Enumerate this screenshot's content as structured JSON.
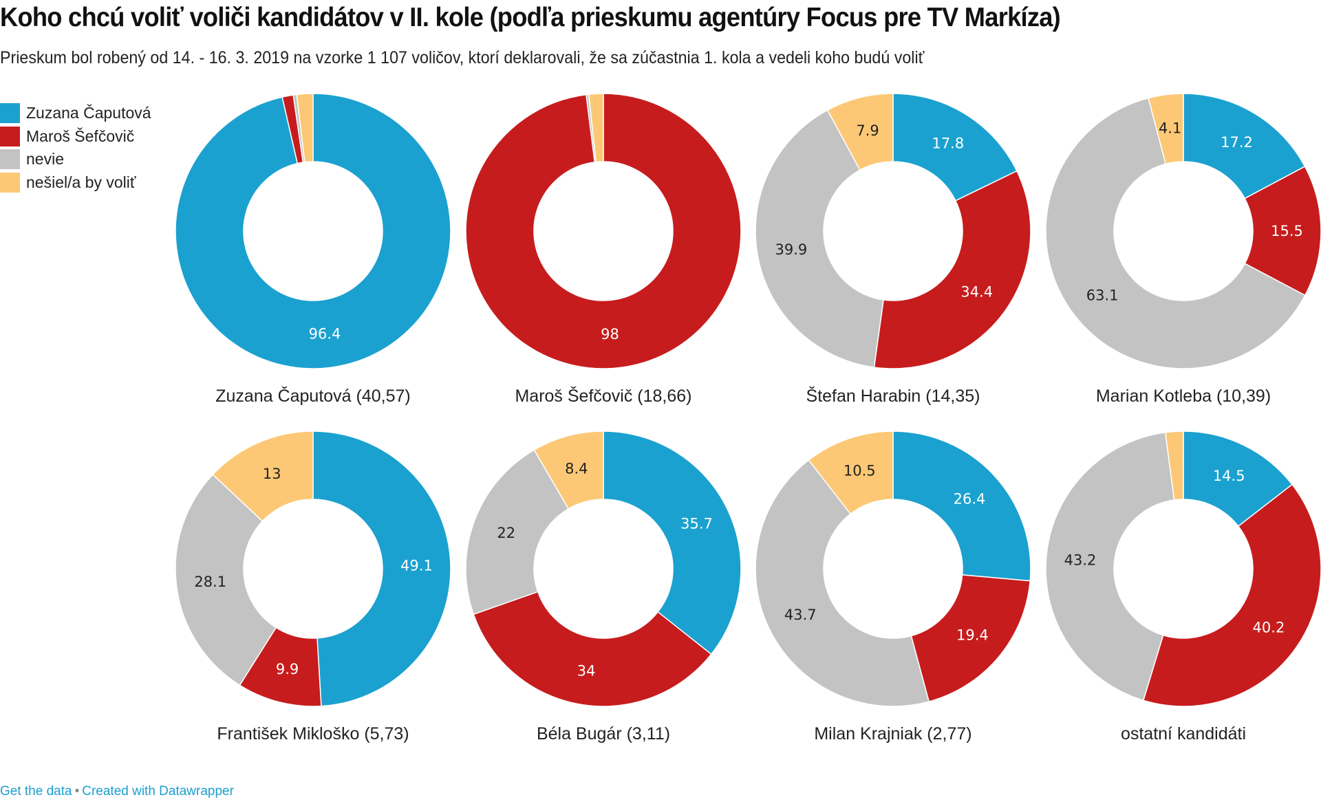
{
  "header": {
    "title": "Koho chcú voliť voliči kandidátov v II. kole (podľa prieskumu agentúry Focus pre TV Markíza)",
    "subtitle": "Prieskum bol robený od 14. - 16. 3. 2019 na vzorke 1 107 voličov, ktorí deklarovali, že sa zúčastnia 1. kola a vedeli koho budú voliť"
  },
  "legend": {
    "items": [
      {
        "label": "Zuzana Čaputová",
        "color": "#1ba1cf"
      },
      {
        "label": "Maroš Šefčovič",
        "color": "#c71c1d"
      },
      {
        "label": "nevie",
        "color": "#c3c3c3"
      },
      {
        "label": "nešiel/a by voliť",
        "color": "#fdc875"
      }
    ]
  },
  "chart_data": {
    "type": "pie",
    "variant": "donut-grid",
    "title": "Koho chcú voliť voliči kandidátov v II. kole (podľa prieskumu agentúry Focus pre TV Markíza)",
    "legend_position": "top-left",
    "series_names": [
      "Zuzana Čaputová",
      "Maroš Šefčovič",
      "nevie",
      "nešiel/a by voliť"
    ],
    "colors": [
      "#1ba1cf",
      "#c71c1d",
      "#c3c3c3",
      "#fdc875"
    ],
    "label_colors": [
      "#ffffff",
      "#ffffff",
      "#222222",
      "#222222"
    ],
    "charts": [
      {
        "title": "Zuzana Čaputová (40,57)",
        "values": [
          96.4,
          1.3,
          0.4,
          1.9
        ],
        "labels": [
          "96.4",
          "",
          "",
          ""
        ]
      },
      {
        "title": "Maroš Šefčovič (18,66)",
        "values": [
          0,
          98,
          0.3,
          1.7
        ],
        "labels": [
          "",
          "98",
          "",
          ""
        ]
      },
      {
        "title": "Štefan Harabin (14,35)",
        "values": [
          17.8,
          34.4,
          39.9,
          7.9
        ],
        "labels": [
          "17.8",
          "34.4",
          "39.9",
          "7.9"
        ]
      },
      {
        "title": "Marian Kotleba (10,39)",
        "values": [
          17.2,
          15.5,
          63.1,
          4.1
        ],
        "labels": [
          "17.2",
          "15.5",
          "63.1",
          "4.1"
        ]
      },
      {
        "title": "František Mikloško (5,73)",
        "values": [
          49.1,
          9.9,
          28.1,
          13
        ],
        "labels": [
          "49.1",
          "9.9",
          "28.1",
          "13"
        ]
      },
      {
        "title": "Béla Bugár (3,11)",
        "values": [
          35.7,
          34,
          22,
          8.4
        ],
        "labels": [
          "35.7",
          "34",
          "22",
          "8.4"
        ]
      },
      {
        "title": "Milan Krajniak (2,77)",
        "values": [
          26.4,
          19.4,
          43.7,
          10.5
        ],
        "labels": [
          "26.4",
          "19.4",
          "43.7",
          "10.5"
        ]
      },
      {
        "title": "ostatní kandidáti",
        "values": [
          14.5,
          40.2,
          43.2,
          2.1
        ],
        "labels": [
          "14.5",
          "40.2",
          "43.2",
          ""
        ]
      }
    ]
  },
  "footer": {
    "get_data": "Get the data",
    "separator": "•",
    "created_with": "Created with Datawrapper"
  }
}
